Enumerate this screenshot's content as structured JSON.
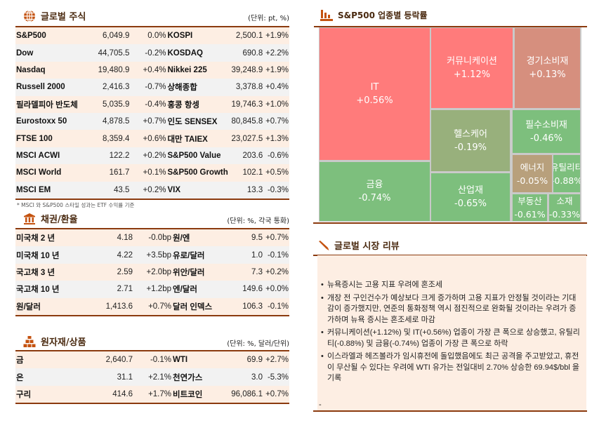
{
  "global_equity": {
    "title": "글로벌 주식",
    "unit": "(단위: pt, %)",
    "icon": "globe-icon",
    "rows": [
      [
        "S&P500",
        "6,049.9",
        "0.0%",
        "KOSPI",
        "2,500.1",
        "+1.9%"
      ],
      [
        "Dow",
        "44,705.5",
        "-0.2%",
        "KOSDAQ",
        "690.8",
        "+2.2%"
      ],
      [
        "Nasdaq",
        "19,480.9",
        "+0.4%",
        "Nikkei 225",
        "39,248.9",
        "+1.9%"
      ],
      [
        "Russell 2000",
        "2,416.3",
        "-0.7%",
        "상해종합",
        "3,378.8",
        "+0.4%"
      ],
      [
        "필라델피아 반도체",
        "5,035.9",
        "-0.4%",
        "홍콩 항셍",
        "19,746.3",
        "+1.0%"
      ],
      [
        "Eurostoxx 50",
        "4,878.5",
        "+0.7%",
        "인도 SENSEX",
        "80,845.8",
        "+0.7%"
      ],
      [
        "FTSE 100",
        "8,359.4",
        "+0.6%",
        "대만 TAIEX",
        "23,027.5",
        "+1.3%"
      ],
      [
        "MSCI ACWI",
        "122.2",
        "+0.2%",
        "S&P500 Value",
        "203.6",
        "-0.6%"
      ],
      [
        "MSCI World",
        "161.7",
        "+0.1%",
        "S&P500 Growth",
        "102.1",
        "+0.5%"
      ],
      [
        "MSCI EM",
        "43.5",
        "+0.2%",
        "VIX",
        "13.3",
        "-0.3%"
      ]
    ],
    "footnote": "* MSCI 와 S&P500 스타일 성과는 ETF 수익률 기준"
  },
  "bonds_fx": {
    "title": "채권/환율",
    "unit": "(단위: %, 각국 통화)",
    "icon": "bank-icon",
    "rows": [
      [
        "미국채 2 년",
        "4.18",
        "-0.0bp",
        "원/엔",
        "9.5",
        "+0.7%"
      ],
      [
        "미국채 10 년",
        "4.22",
        "+3.5bp",
        "유로/달러",
        "1.0",
        "-0.1%"
      ],
      [
        "국고채 3 년",
        "2.59",
        "+2.0bp",
        "위안/달러",
        "7.3",
        "+0.2%"
      ],
      [
        "국고채 10 년",
        "2.71",
        "+1.2bp",
        "엔/달러",
        "149.6",
        "+0.0%"
      ],
      [
        "원/달러",
        "1,413.6",
        "+0.7%",
        "달러 인덱스",
        "106.3",
        "-0.1%"
      ]
    ]
  },
  "commodities": {
    "title": "원자재/상품",
    "unit": "(단위: %, 달러/단위)",
    "icon": "gold-bars-icon",
    "rows": [
      [
        "금",
        "2,640.7",
        "-0.1%",
        "WTI",
        "69.9",
        "+2.7%"
      ],
      [
        "은",
        "31.1",
        "+2.1%",
        "천연가스",
        "3.0",
        "-5.3%"
      ],
      [
        "구리",
        "414.6",
        "+1.7%",
        "비트코인",
        "96,086.1",
        "+0.7%"
      ]
    ]
  },
  "sector": {
    "title": "S&P500 업종별 등락률",
    "icon": "bar-chart-icon"
  },
  "chart_data": {
    "type": "treemap",
    "sectors": [
      {
        "name": "IT",
        "value": "+0.56%",
        "change": 0.56,
        "color": "#ff7b7b"
      },
      {
        "name": "금융",
        "value": "-0.74%",
        "change": -0.74,
        "color": "#7dbf7d"
      },
      {
        "name": "커뮤니케이션",
        "value": "+1.12%",
        "change": 1.12,
        "color": "#ff7b7b"
      },
      {
        "name": "경기소비재",
        "value": "+0.13%",
        "change": 0.13,
        "color": "#d68f7e"
      },
      {
        "name": "헬스케어",
        "value": "-0.19%",
        "change": -0.19,
        "color": "#98b07c"
      },
      {
        "name": "산업재",
        "value": "-0.65%",
        "change": -0.65,
        "color": "#7dbf7d"
      },
      {
        "name": "필수소비재",
        "value": "-0.46%",
        "change": -0.46,
        "color": "#7dbf7d"
      },
      {
        "name": "에너지",
        "value": "-0.05%",
        "change": -0.05,
        "color": "#b8a07c"
      },
      {
        "name": "유틸리티",
        "value": "-0.88%",
        "change": -0.88,
        "color": "#7dbf7d"
      },
      {
        "name": "부동산",
        "value": "-0.61%",
        "change": -0.61,
        "color": "#7dbf7d"
      },
      {
        "name": "소재",
        "value": "-0.33%",
        "change": -0.33,
        "color": "#7dbf7d"
      }
    ]
  },
  "review": {
    "title": "글로벌 시장 리뷰",
    "icon": "pen-icon",
    "bullets": [
      "뉴욕증시는 고용 지표 우려에 혼조세",
      "개장 전 구인건수가 예상보다 크게 증가하며 고용 지표가 안정될 것이라는 기대감이 증가했지만, 연준의 통화정책 역시 점진적으로 완화될 것이라는 우려가 증가하며 뉴욕 증시는 혼조세로 마감",
      "커뮤니케이션(+1.12%) 및 IT(+0.56%) 업종이 가장 큰 폭으로 상승했고, 유틸리티(-0.88%) 및 금융(-0.74%) 업종이 가장 큰 폭으로 하락",
      "이스라엘과 헤즈볼라가 임시휴전에 돌입했음에도 최근 공격을 주고받았고, 휴전이 무산될 수 있다는 우려에 WTI 유가는 전일대비 2.70% 상승한 69.94$/bbl 을 기록"
    ],
    "trailing": "-"
  }
}
